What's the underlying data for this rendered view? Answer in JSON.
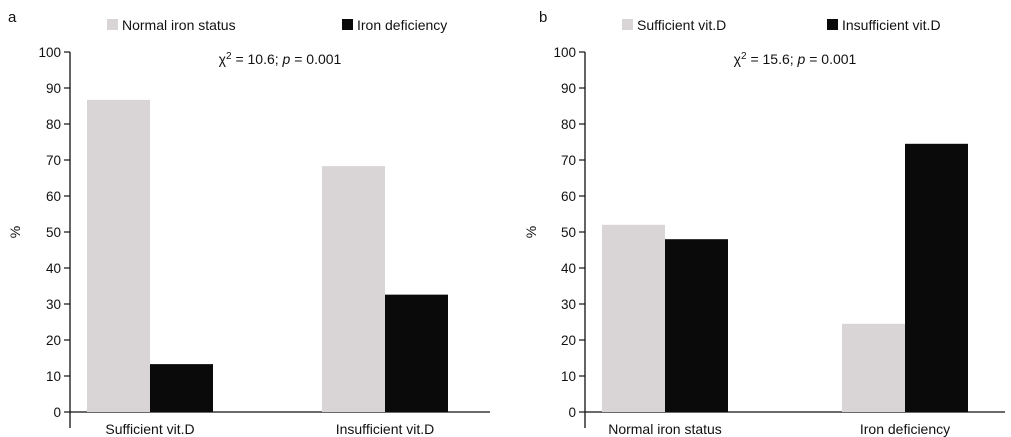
{
  "chart_data": [
    {
      "panel": "a",
      "type": "bar",
      "categories": [
        "Sufficient vit.D",
        "Insufficient vit.D"
      ],
      "series": [
        {
          "name": "Normal iron status",
          "values": [
            86.7,
            68.3
          ],
          "color": "#d9d4d6"
        },
        {
          "name": "Iron deficiency",
          "values": [
            13.3,
            32.6
          ],
          "color": "#0a0a0a"
        }
      ],
      "title": "",
      "xlabel": "",
      "ylabel": "%",
      "ylim": [
        0,
        100
      ],
      "yticks": [
        0,
        10,
        20,
        30,
        40,
        50,
        60,
        70,
        80,
        90,
        100
      ],
      "annotation": {
        "chi_symbol": "χ",
        "chi_power": "2",
        "chi_value": " = 10.6; ",
        "p_symbol": "p",
        "p_value": " = 0.001"
      },
      "legend_placement": "top",
      "grid": false
    },
    {
      "panel": "b",
      "type": "bar",
      "categories": [
        "Normal iron status",
        "Iron deficiency"
      ],
      "series": [
        {
          "name": "Sufficient vit.D",
          "values": [
            52.0,
            24.5
          ],
          "color": "#d9d4d6"
        },
        {
          "name": "Insufficient vit.D",
          "values": [
            48.0,
            74.5
          ],
          "color": "#0a0a0a"
        }
      ],
      "title": "",
      "xlabel": "",
      "ylabel": "%",
      "ylim": [
        0,
        100
      ],
      "yticks": [
        0,
        10,
        20,
        30,
        40,
        50,
        60,
        70,
        80,
        90,
        100
      ],
      "annotation": {
        "chi_symbol": "χ",
        "chi_power": "2",
        "chi_value": " = 15.6; ",
        "p_symbol": "p",
        "p_value": " = 0.001"
      },
      "legend_placement": "top",
      "grid": false
    }
  ]
}
